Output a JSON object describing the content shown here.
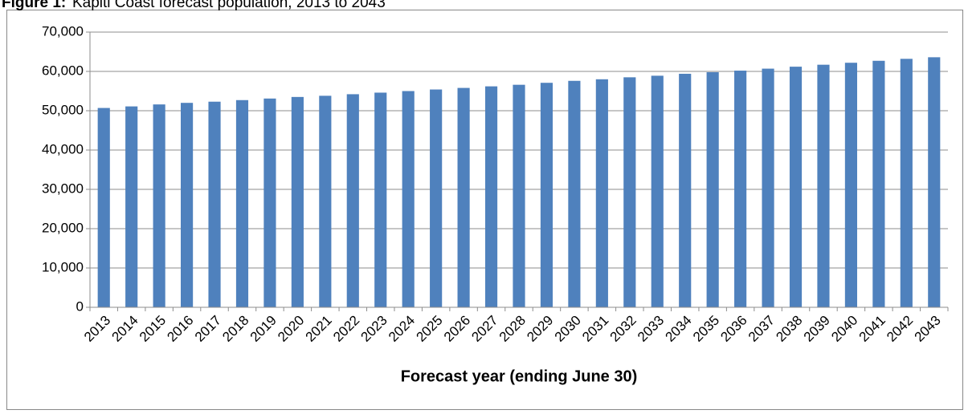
{
  "chart_data": {
    "type": "bar",
    "title_label": "Figure 1:",
    "title": "Kapiti Coast forecast population, 2013 to 2043",
    "x_label": "Forecast year (ending June 30)",
    "categories": [
      "2013",
      "2014",
      "2015",
      "2016",
      "2017",
      "2018",
      "2019",
      "2020",
      "2021",
      "2022",
      "2023",
      "2024",
      "2025",
      "2026",
      "2027",
      "2028",
      "2029",
      "2030",
      "2031",
      "2032",
      "2033",
      "2034",
      "2035",
      "2036",
      "2037",
      "2038",
      "2039",
      "2040",
      "2041",
      "2042",
      "2043"
    ],
    "values": [
      50700,
      51100,
      51600,
      52000,
      52300,
      52700,
      53100,
      53500,
      53800,
      54200,
      54600,
      55000,
      55400,
      55800,
      56200,
      56600,
      57100,
      57600,
      58000,
      58500,
      58900,
      59400,
      59800,
      60200,
      60700,
      61200,
      61700,
      62200,
      62700,
      63200,
      63600
    ],
    "color": "#4f81bd",
    "ylim": [
      0,
      70000
    ],
    "yticks": [
      0,
      {
        "value": 10000,
        "label": "10,000"
      },
      {
        "value": 20000,
        "label": "20,000"
      },
      {
        "value": 30000,
        "label": "30,000"
      },
      {
        "value": 40000,
        "label": "40,000"
      },
      {
        "value": 50000,
        "label": "50,000"
      },
      {
        "value": 60000,
        "label": "60,000"
      },
      {
        "value": 70000,
        "label": "70,000"
      }
    ],
    "grid": true
  }
}
